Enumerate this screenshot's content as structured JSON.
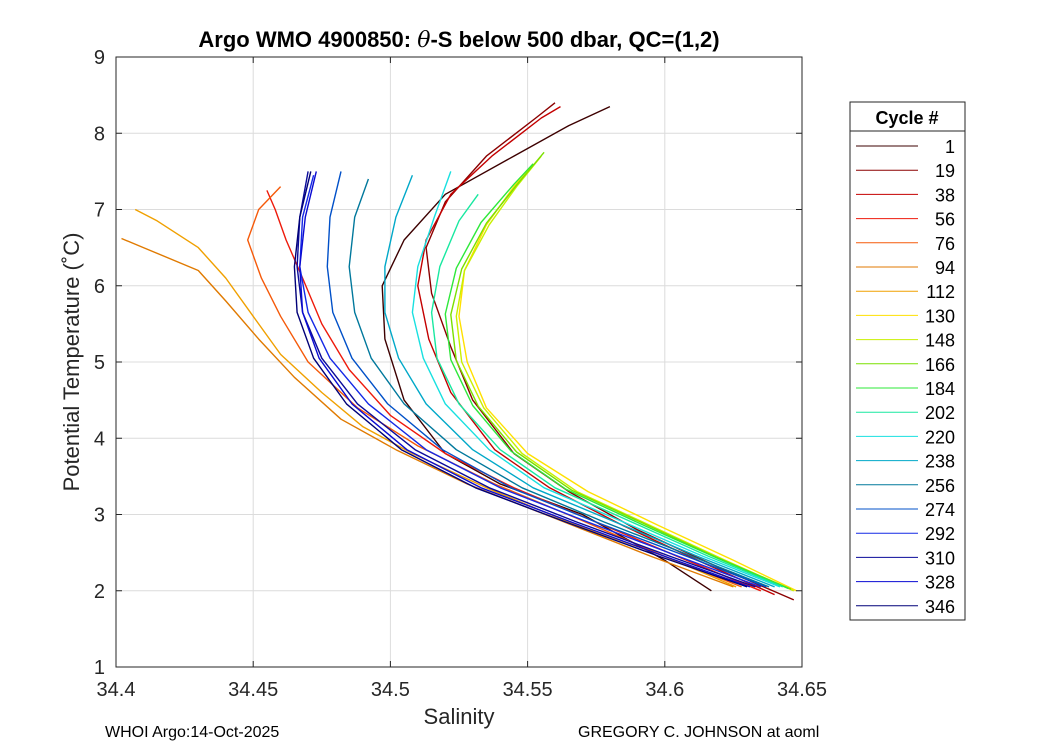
{
  "chart_data": {
    "type": "line",
    "title": "Argo WMO 4900850: θ-S below 500 dbar,  QC=(1,2)",
    "title_prefix": "Argo WMO 4900850: ",
    "title_symbol": "θ",
    "title_suffix": "-S below 500 dbar,  QC=(1,2)",
    "xlabel": "Salinity",
    "ylabel": "Potential Temperature (˚C)",
    "xlim": [
      34.4,
      34.65
    ],
    "ylim": [
      1,
      9
    ],
    "xticks": [
      34.4,
      34.45,
      34.5,
      34.55,
      34.6,
      34.65
    ],
    "xtick_labels": [
      "34.4",
      "34.45",
      "34.5",
      "34.55",
      "34.6",
      "34.65"
    ],
    "yticks": [
      1,
      2,
      3,
      4,
      5,
      6,
      7,
      8,
      9
    ],
    "ytick_labels": [
      "1",
      "2",
      "3",
      "4",
      "5",
      "6",
      "7",
      "8",
      "9"
    ],
    "grid": true,
    "legend_title": "Cycle #",
    "legend_placement": "outside-right",
    "series": [
      {
        "name": "1",
        "color": "#3d0000",
        "x": [
          34.617,
          34.6,
          34.57,
          34.54,
          34.52,
          34.505,
          34.498,
          34.497,
          34.505,
          34.52,
          34.545,
          34.565,
          34.58
        ],
        "y": [
          2.0,
          2.4,
          3.0,
          3.4,
          3.8,
          4.5,
          5.3,
          6.0,
          6.6,
          7.2,
          7.7,
          8.1,
          8.35
        ]
      },
      {
        "name": "19",
        "color": "#8b0000",
        "x": [
          34.647,
          34.62,
          34.59,
          34.565,
          34.545,
          34.53,
          34.522,
          34.515,
          34.513,
          34.52,
          34.535,
          34.553,
          34.56
        ],
        "y": [
          1.88,
          2.3,
          2.8,
          3.3,
          3.8,
          4.5,
          5.2,
          5.9,
          6.5,
          7.1,
          7.7,
          8.2,
          8.4
        ]
      },
      {
        "name": "38",
        "color": "#c40000",
        "x": [
          34.64,
          34.615,
          34.585,
          34.558,
          34.538,
          34.522,
          34.514,
          34.51,
          34.513,
          34.522,
          34.537,
          34.555,
          34.562
        ],
        "y": [
          1.95,
          2.35,
          2.85,
          3.35,
          3.85,
          4.6,
          5.3,
          6.0,
          6.6,
          7.2,
          7.7,
          8.2,
          8.35
        ]
      },
      {
        "name": "56",
        "color": "#ee1a0b",
        "x": [
          34.635,
          34.608,
          34.575,
          34.545,
          34.52,
          34.5,
          34.485,
          34.475,
          34.468,
          34.462,
          34.458,
          34.455
        ],
        "y": [
          2.0,
          2.4,
          2.9,
          3.35,
          3.8,
          4.3,
          4.9,
          5.5,
          6.1,
          6.6,
          7.0,
          7.25
        ]
      },
      {
        "name": "76",
        "color": "#f55a0a",
        "x": [
          34.628,
          34.6,
          34.568,
          34.538,
          34.51,
          34.488,
          34.47,
          34.46,
          34.453,
          34.448,
          34.452,
          34.46
        ],
        "y": [
          2.05,
          2.45,
          2.95,
          3.4,
          3.9,
          4.4,
          5.0,
          5.6,
          6.1,
          6.6,
          7.0,
          7.3
        ]
      },
      {
        "name": "94",
        "color": "#e07a00",
        "x": [
          34.625,
          34.595,
          34.56,
          34.528,
          34.502,
          34.482,
          34.465,
          34.452,
          34.44,
          34.43,
          34.41,
          34.402
        ],
        "y": [
          2.05,
          2.45,
          2.95,
          3.4,
          3.85,
          4.25,
          4.8,
          5.3,
          5.8,
          6.2,
          6.5,
          6.62
        ]
      },
      {
        "name": "112",
        "color": "#f0a000",
        "x": [
          34.626,
          34.6,
          34.565,
          34.535,
          34.508,
          34.49,
          34.475,
          34.46,
          34.45,
          34.44,
          34.43,
          34.415,
          34.407
        ],
        "y": [
          2.05,
          2.45,
          2.9,
          3.35,
          3.8,
          4.15,
          4.6,
          5.1,
          5.6,
          6.1,
          6.5,
          6.85,
          7.0
        ]
      },
      {
        "name": "130",
        "color": "#ffe000",
        "x": [
          34.648,
          34.625,
          34.598,
          34.572,
          34.55,
          34.535,
          34.528,
          34.525,
          34.527,
          34.535,
          34.545,
          34.552
        ],
        "y": [
          2.0,
          2.4,
          2.85,
          3.3,
          3.8,
          4.4,
          5.0,
          5.6,
          6.2,
          6.8,
          7.3,
          7.6
        ]
      },
      {
        "name": "148",
        "color": "#c8f000",
        "x": [
          34.647,
          34.622,
          34.595,
          34.568,
          34.548,
          34.534,
          34.526,
          34.524,
          34.527,
          34.536,
          34.546,
          34.555
        ],
        "y": [
          2.0,
          2.4,
          2.85,
          3.3,
          3.8,
          4.4,
          5.0,
          5.6,
          6.2,
          6.8,
          7.3,
          7.7
        ]
      },
      {
        "name": "166",
        "color": "#7ae000",
        "x": [
          34.646,
          34.62,
          34.593,
          34.566,
          34.546,
          34.532,
          34.524,
          34.522,
          34.526,
          34.535,
          34.546,
          34.556
        ],
        "y": [
          2.02,
          2.42,
          2.87,
          3.32,
          3.82,
          4.42,
          5.02,
          5.62,
          6.22,
          6.82,
          7.32,
          7.75
        ]
      },
      {
        "name": "184",
        "color": "#2ee83a",
        "x": [
          34.645,
          34.619,
          34.591,
          34.564,
          34.544,
          34.53,
          34.522,
          34.52,
          34.524,
          34.533,
          34.545,
          34.552
        ],
        "y": [
          2.03,
          2.43,
          2.88,
          3.33,
          3.83,
          4.43,
          5.03,
          5.63,
          6.23,
          6.83,
          7.33,
          7.6
        ]
      },
      {
        "name": "202",
        "color": "#18e8a0",
        "x": [
          34.643,
          34.616,
          34.588,
          34.56,
          34.54,
          34.525,
          34.517,
          34.515,
          34.518,
          34.525,
          34.532
        ],
        "y": [
          2.05,
          2.45,
          2.9,
          3.35,
          3.85,
          4.45,
          5.05,
          5.65,
          6.25,
          6.85,
          7.2
        ]
      },
      {
        "name": "220",
        "color": "#18e0e0",
        "x": [
          34.642,
          34.614,
          34.585,
          34.556,
          34.536,
          34.52,
          34.512,
          34.508,
          34.51,
          34.516,
          34.522
        ],
        "y": [
          2.05,
          2.45,
          2.9,
          3.35,
          3.85,
          4.45,
          5.05,
          5.65,
          6.25,
          6.9,
          7.5
        ]
      },
      {
        "name": "238",
        "color": "#00a8c8",
        "x": [
          34.64,
          34.612,
          34.582,
          34.552,
          34.53,
          34.513,
          34.503,
          34.498,
          34.498,
          34.502,
          34.508
        ],
        "y": [
          2.05,
          2.45,
          2.9,
          3.35,
          3.85,
          4.45,
          5.05,
          5.65,
          6.25,
          6.9,
          7.45
        ]
      },
      {
        "name": "256",
        "color": "#00789c",
        "x": [
          34.638,
          34.61,
          34.578,
          34.548,
          34.524,
          34.505,
          34.493,
          34.487,
          34.485,
          34.487,
          34.492
        ],
        "y": [
          2.05,
          2.45,
          2.9,
          3.35,
          3.85,
          4.45,
          5.05,
          5.65,
          6.25,
          6.9,
          7.4
        ]
      },
      {
        "name": "274",
        "color": "#0050c8",
        "x": [
          34.637,
          34.608,
          34.575,
          34.544,
          34.519,
          34.499,
          34.486,
          34.479,
          34.477,
          34.478,
          34.482
        ],
        "y": [
          2.05,
          2.45,
          2.9,
          3.35,
          3.85,
          4.45,
          5.05,
          5.65,
          6.25,
          6.9,
          7.5
        ]
      },
      {
        "name": "292",
        "color": "#1428e6",
        "x": [
          34.635,
          34.605,
          34.572,
          34.54,
          34.513,
          34.492,
          34.478,
          34.47,
          34.467,
          34.468,
          34.472
        ],
        "y": [
          2.05,
          2.45,
          2.9,
          3.35,
          3.85,
          4.45,
          5.05,
          5.65,
          6.25,
          6.9,
          7.45
        ]
      },
      {
        "name": "310",
        "color": "#0a0a9a",
        "x": [
          34.633,
          34.602,
          34.568,
          34.536,
          34.509,
          34.488,
          34.475,
          34.468,
          34.466,
          34.467,
          34.47
        ],
        "y": [
          2.05,
          2.45,
          2.9,
          3.35,
          3.85,
          4.45,
          5.05,
          5.65,
          6.25,
          6.9,
          7.5
        ]
      },
      {
        "name": "328",
        "color": "#0a0ad2",
        "x": [
          34.631,
          34.6,
          34.566,
          34.533,
          34.506,
          34.486,
          34.474,
          34.468,
          34.467,
          34.469,
          34.473
        ],
        "y": [
          2.05,
          2.45,
          2.9,
          3.35,
          3.85,
          4.45,
          5.05,
          5.65,
          6.25,
          6.9,
          7.5
        ]
      },
      {
        "name": "346",
        "color": "#000078",
        "x": [
          34.63,
          34.598,
          34.564,
          34.531,
          34.504,
          34.484,
          34.472,
          34.466,
          34.465,
          34.467,
          34.471
        ],
        "y": [
          2.05,
          2.45,
          2.9,
          3.35,
          3.85,
          4.45,
          5.05,
          5.65,
          6.25,
          6.9,
          7.5
        ]
      }
    ]
  },
  "footer": {
    "left": "WHOI Argo:14-Oct-2025",
    "right": "GREGORY C. JOHNSON at aoml"
  }
}
